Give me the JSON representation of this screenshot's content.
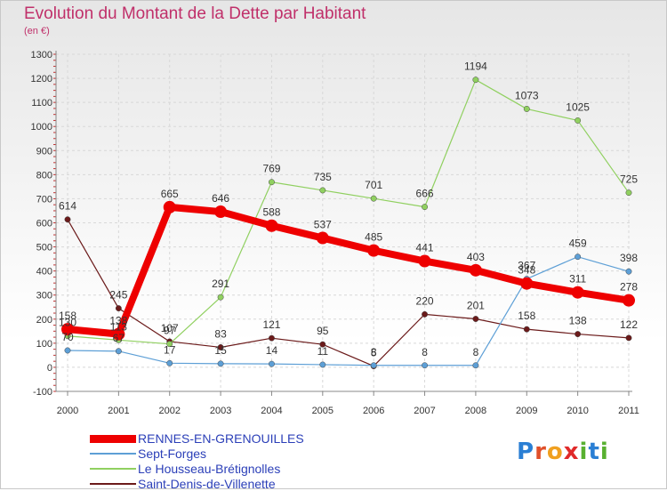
{
  "header": {
    "title": "Evolution du Montant de la Dette par Habitant",
    "subtitle": "(en €)"
  },
  "logo": {
    "letters": [
      "P",
      "r",
      "o",
      "x",
      "i",
      "t",
      "i"
    ],
    "colors": [
      "#2a7fd4",
      "#e0502a",
      "#f0a020",
      "#e02a2a",
      "#58b030",
      "#2a7fd4",
      "#58b030"
    ]
  },
  "chart_data": {
    "type": "line",
    "title": "Evolution du Montant de la Dette par Habitant",
    "subtitle": "(en €)",
    "x": [
      "2000",
      "2001",
      "2002",
      "2003",
      "2004",
      "2005",
      "2006",
      "2007",
      "2008",
      "2009",
      "2010",
      "2011"
    ],
    "ylim": [
      -100,
      1300
    ],
    "yticks": [
      -100,
      0,
      100,
      200,
      300,
      400,
      500,
      600,
      700,
      800,
      900,
      1000,
      1100,
      1200,
      1300
    ],
    "grid": true,
    "legend_position": "bottom",
    "series": [
      {
        "name": "Saint-Denis-de-Villenette",
        "color": "#6b1a1a",
        "width": 1.2,
        "values": [
          614,
          245,
          107,
          83,
          121,
          95,
          5,
          220,
          201,
          158,
          138,
          122
        ]
      },
      {
        "name": "Sept-Forges",
        "color": "#5d9fd6",
        "width": 1.2,
        "values": [
          70,
          67,
          17,
          15,
          14,
          11,
          8,
          8,
          8,
          367,
          459,
          398
        ]
      },
      {
        "name": "Le Housseau-Brétignolles",
        "color": "#90d060",
        "width": 1.2,
        "values": [
          130,
          113,
          97,
          291,
          769,
          735,
          701,
          666,
          1194,
          1073,
          1025,
          725
        ]
      },
      {
        "name": "RENNES-EN-GRENOUILLES",
        "color": "#ee0000",
        "width": 8,
        "values": [
          158,
          138,
          665,
          646,
          588,
          537,
          485,
          441,
          403,
          348,
          311,
          278
        ]
      }
    ]
  }
}
